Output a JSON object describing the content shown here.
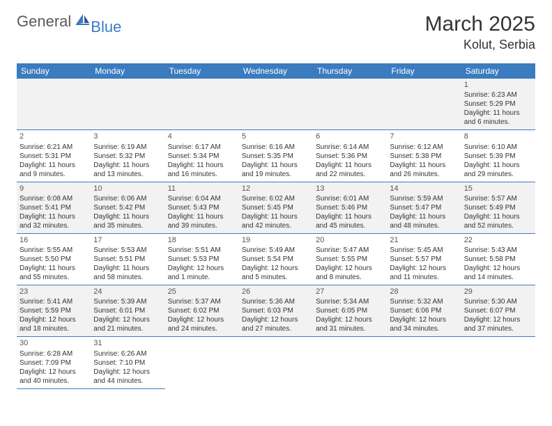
{
  "logo": {
    "text1": "General",
    "text2": "Blue"
  },
  "title": "March 2025",
  "location": "Kolut, Serbia",
  "headerBg": "#3b7bbf",
  "dayNames": [
    "Sunday",
    "Monday",
    "Tuesday",
    "Wednesday",
    "Thursday",
    "Friday",
    "Saturday"
  ],
  "weeks": [
    [
      null,
      null,
      null,
      null,
      null,
      null,
      {
        "n": "1",
        "sr": "Sunrise: 6:23 AM",
        "ss": "Sunset: 5:29 PM",
        "dl": "Daylight: 11 hours and 6 minutes."
      }
    ],
    [
      {
        "n": "2",
        "sr": "Sunrise: 6:21 AM",
        "ss": "Sunset: 5:31 PM",
        "dl": "Daylight: 11 hours and 9 minutes."
      },
      {
        "n": "3",
        "sr": "Sunrise: 6:19 AM",
        "ss": "Sunset: 5:32 PM",
        "dl": "Daylight: 11 hours and 13 minutes."
      },
      {
        "n": "4",
        "sr": "Sunrise: 6:17 AM",
        "ss": "Sunset: 5:34 PM",
        "dl": "Daylight: 11 hours and 16 minutes."
      },
      {
        "n": "5",
        "sr": "Sunrise: 6:16 AM",
        "ss": "Sunset: 5:35 PM",
        "dl": "Daylight: 11 hours and 19 minutes."
      },
      {
        "n": "6",
        "sr": "Sunrise: 6:14 AM",
        "ss": "Sunset: 5:36 PM",
        "dl": "Daylight: 11 hours and 22 minutes."
      },
      {
        "n": "7",
        "sr": "Sunrise: 6:12 AM",
        "ss": "Sunset: 5:38 PM",
        "dl": "Daylight: 11 hours and 26 minutes."
      },
      {
        "n": "8",
        "sr": "Sunrise: 6:10 AM",
        "ss": "Sunset: 5:39 PM",
        "dl": "Daylight: 11 hours and 29 minutes."
      }
    ],
    [
      {
        "n": "9",
        "sr": "Sunrise: 6:08 AM",
        "ss": "Sunset: 5:41 PM",
        "dl": "Daylight: 11 hours and 32 minutes."
      },
      {
        "n": "10",
        "sr": "Sunrise: 6:06 AM",
        "ss": "Sunset: 5:42 PM",
        "dl": "Daylight: 11 hours and 35 minutes."
      },
      {
        "n": "11",
        "sr": "Sunrise: 6:04 AM",
        "ss": "Sunset: 5:43 PM",
        "dl": "Daylight: 11 hours and 39 minutes."
      },
      {
        "n": "12",
        "sr": "Sunrise: 6:02 AM",
        "ss": "Sunset: 5:45 PM",
        "dl": "Daylight: 11 hours and 42 minutes."
      },
      {
        "n": "13",
        "sr": "Sunrise: 6:01 AM",
        "ss": "Sunset: 5:46 PM",
        "dl": "Daylight: 11 hours and 45 minutes."
      },
      {
        "n": "14",
        "sr": "Sunrise: 5:59 AM",
        "ss": "Sunset: 5:47 PM",
        "dl": "Daylight: 11 hours and 48 minutes."
      },
      {
        "n": "15",
        "sr": "Sunrise: 5:57 AM",
        "ss": "Sunset: 5:49 PM",
        "dl": "Daylight: 11 hours and 52 minutes."
      }
    ],
    [
      {
        "n": "16",
        "sr": "Sunrise: 5:55 AM",
        "ss": "Sunset: 5:50 PM",
        "dl": "Daylight: 11 hours and 55 minutes."
      },
      {
        "n": "17",
        "sr": "Sunrise: 5:53 AM",
        "ss": "Sunset: 5:51 PM",
        "dl": "Daylight: 11 hours and 58 minutes."
      },
      {
        "n": "18",
        "sr": "Sunrise: 5:51 AM",
        "ss": "Sunset: 5:53 PM",
        "dl": "Daylight: 12 hours and 1 minute."
      },
      {
        "n": "19",
        "sr": "Sunrise: 5:49 AM",
        "ss": "Sunset: 5:54 PM",
        "dl": "Daylight: 12 hours and 5 minutes."
      },
      {
        "n": "20",
        "sr": "Sunrise: 5:47 AM",
        "ss": "Sunset: 5:55 PM",
        "dl": "Daylight: 12 hours and 8 minutes."
      },
      {
        "n": "21",
        "sr": "Sunrise: 5:45 AM",
        "ss": "Sunset: 5:57 PM",
        "dl": "Daylight: 12 hours and 11 minutes."
      },
      {
        "n": "22",
        "sr": "Sunrise: 5:43 AM",
        "ss": "Sunset: 5:58 PM",
        "dl": "Daylight: 12 hours and 14 minutes."
      }
    ],
    [
      {
        "n": "23",
        "sr": "Sunrise: 5:41 AM",
        "ss": "Sunset: 5:59 PM",
        "dl": "Daylight: 12 hours and 18 minutes."
      },
      {
        "n": "24",
        "sr": "Sunrise: 5:39 AM",
        "ss": "Sunset: 6:01 PM",
        "dl": "Daylight: 12 hours and 21 minutes."
      },
      {
        "n": "25",
        "sr": "Sunrise: 5:37 AM",
        "ss": "Sunset: 6:02 PM",
        "dl": "Daylight: 12 hours and 24 minutes."
      },
      {
        "n": "26",
        "sr": "Sunrise: 5:36 AM",
        "ss": "Sunset: 6:03 PM",
        "dl": "Daylight: 12 hours and 27 minutes."
      },
      {
        "n": "27",
        "sr": "Sunrise: 5:34 AM",
        "ss": "Sunset: 6:05 PM",
        "dl": "Daylight: 12 hours and 31 minutes."
      },
      {
        "n": "28",
        "sr": "Sunrise: 5:32 AM",
        "ss": "Sunset: 6:06 PM",
        "dl": "Daylight: 12 hours and 34 minutes."
      },
      {
        "n": "29",
        "sr": "Sunrise: 5:30 AM",
        "ss": "Sunset: 6:07 PM",
        "dl": "Daylight: 12 hours and 37 minutes."
      }
    ],
    [
      {
        "n": "30",
        "sr": "Sunrise: 6:28 AM",
        "ss": "Sunset: 7:09 PM",
        "dl": "Daylight: 12 hours and 40 minutes."
      },
      {
        "n": "31",
        "sr": "Sunrise: 6:26 AM",
        "ss": "Sunset: 7:10 PM",
        "dl": "Daylight: 12 hours and 44 minutes."
      },
      null,
      null,
      null,
      null,
      null
    ]
  ],
  "rowBg": [
    "#f2f2f2",
    "#ffffff",
    "#f2f2f2",
    "#ffffff",
    "#f2f2f2",
    "#ffffff"
  ]
}
